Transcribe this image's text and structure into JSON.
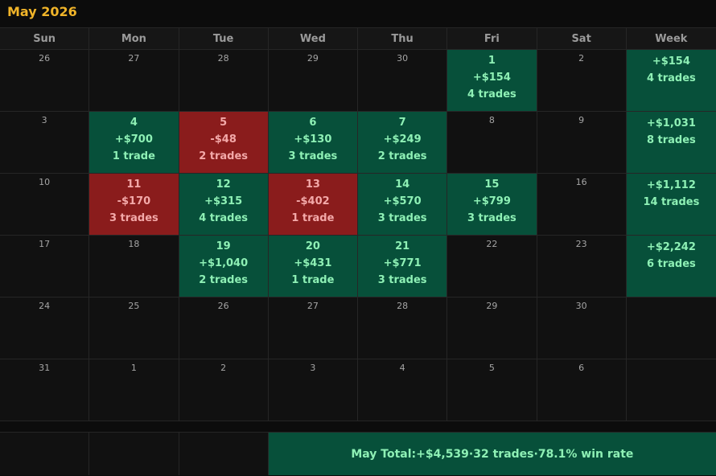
{
  "title": "May 2026",
  "weekdays": [
    "Sun",
    "Mon",
    "Tue",
    "Wed",
    "Thu",
    "Fri",
    "Sat",
    "Week"
  ],
  "weeks": [
    {
      "days": [
        {
          "date": "26",
          "pnl": "",
          "trades": "",
          "type": "plain"
        },
        {
          "date": "27",
          "pnl": "",
          "trades": "",
          "type": "plain"
        },
        {
          "date": "28",
          "pnl": "",
          "trades": "",
          "type": "plain"
        },
        {
          "date": "29",
          "pnl": "",
          "trades": "",
          "type": "plain"
        },
        {
          "date": "30",
          "pnl": "",
          "trades": "",
          "type": "plain"
        },
        {
          "date": "1",
          "pnl": "+$154",
          "trades": "4 trades",
          "type": "win"
        },
        {
          "date": "2",
          "pnl": "",
          "trades": "",
          "type": "plain"
        }
      ],
      "summary": {
        "pnl": "+$154",
        "trades": "4 trades"
      }
    },
    {
      "days": [
        {
          "date": "3",
          "pnl": "",
          "trades": "",
          "type": "plain"
        },
        {
          "date": "4",
          "pnl": "+$700",
          "trades": "1 trade",
          "type": "win"
        },
        {
          "date": "5",
          "pnl": "-$48",
          "trades": "2 trades",
          "type": "loss"
        },
        {
          "date": "6",
          "pnl": "+$130",
          "trades": "3 trades",
          "type": "win"
        },
        {
          "date": "7",
          "pnl": "+$249",
          "trades": "2 trades",
          "type": "win"
        },
        {
          "date": "8",
          "pnl": "",
          "trades": "",
          "type": "plain"
        },
        {
          "date": "9",
          "pnl": "",
          "trades": "",
          "type": "plain"
        }
      ],
      "summary": {
        "pnl": "+$1,031",
        "trades": "8 trades"
      }
    },
    {
      "days": [
        {
          "date": "10",
          "pnl": "",
          "trades": "",
          "type": "plain"
        },
        {
          "date": "11",
          "pnl": "-$170",
          "trades": "3 trades",
          "type": "loss"
        },
        {
          "date": "12",
          "pnl": "+$315",
          "trades": "4 trades",
          "type": "win"
        },
        {
          "date": "13",
          "pnl": "-$402",
          "trades": "1 trade",
          "type": "loss"
        },
        {
          "date": "14",
          "pnl": "+$570",
          "trades": "3 trades",
          "type": "win"
        },
        {
          "date": "15",
          "pnl": "+$799",
          "trades": "3 trades",
          "type": "win"
        },
        {
          "date": "16",
          "pnl": "",
          "trades": "",
          "type": "plain"
        }
      ],
      "summary": {
        "pnl": "+$1,112",
        "trades": "14 trades"
      }
    },
    {
      "days": [
        {
          "date": "17",
          "pnl": "",
          "trades": "",
          "type": "plain"
        },
        {
          "date": "18",
          "pnl": "",
          "trades": "",
          "type": "plain"
        },
        {
          "date": "19",
          "pnl": "+$1,040",
          "trades": "2 trades",
          "type": "win"
        },
        {
          "date": "20",
          "pnl": "+$431",
          "trades": "1 trade",
          "type": "win"
        },
        {
          "date": "21",
          "pnl": "+$771",
          "trades": "3 trades",
          "type": "win"
        },
        {
          "date": "22",
          "pnl": "",
          "trades": "",
          "type": "plain"
        },
        {
          "date": "23",
          "pnl": "",
          "trades": "",
          "type": "plain"
        }
      ],
      "summary": {
        "pnl": "+$2,242",
        "trades": "6 trades"
      }
    },
    {
      "days": [
        {
          "date": "24",
          "pnl": "",
          "trades": "",
          "type": "plain"
        },
        {
          "date": "25",
          "pnl": "",
          "trades": "",
          "type": "plain"
        },
        {
          "date": "26",
          "pnl": "",
          "trades": "",
          "type": "plain"
        },
        {
          "date": "27",
          "pnl": "",
          "trades": "",
          "type": "plain"
        },
        {
          "date": "28",
          "pnl": "",
          "trades": "",
          "type": "plain"
        },
        {
          "date": "29",
          "pnl": "",
          "trades": "",
          "type": "plain"
        },
        {
          "date": "30",
          "pnl": "",
          "trades": "",
          "type": "plain"
        }
      ],
      "summary": null
    },
    {
      "days": [
        {
          "date": "31",
          "pnl": "",
          "trades": "",
          "type": "plain"
        },
        {
          "date": "1",
          "pnl": "",
          "trades": "",
          "type": "plain"
        },
        {
          "date": "2",
          "pnl": "",
          "trades": "",
          "type": "plain"
        },
        {
          "date": "3",
          "pnl": "",
          "trades": "",
          "type": "plain"
        },
        {
          "date": "4",
          "pnl": "",
          "trades": "",
          "type": "plain"
        },
        {
          "date": "5",
          "pnl": "",
          "trades": "",
          "type": "plain"
        },
        {
          "date": "6",
          "pnl": "",
          "trades": "",
          "type": "plain"
        }
      ],
      "summary": null
    }
  ],
  "footer": {
    "label": "May Total:",
    "total": "+$4,539",
    "trades": "32 trades",
    "win_rate": "78.1% win rate",
    "separator": "·"
  },
  "colors": {
    "accent": "#f0b429",
    "win_bg": "#07503a",
    "loss_bg": "#8a1c1c",
    "win_text": "#8ef0b5",
    "loss_text": "#f3a9a9",
    "cell_bg": "#111111"
  }
}
